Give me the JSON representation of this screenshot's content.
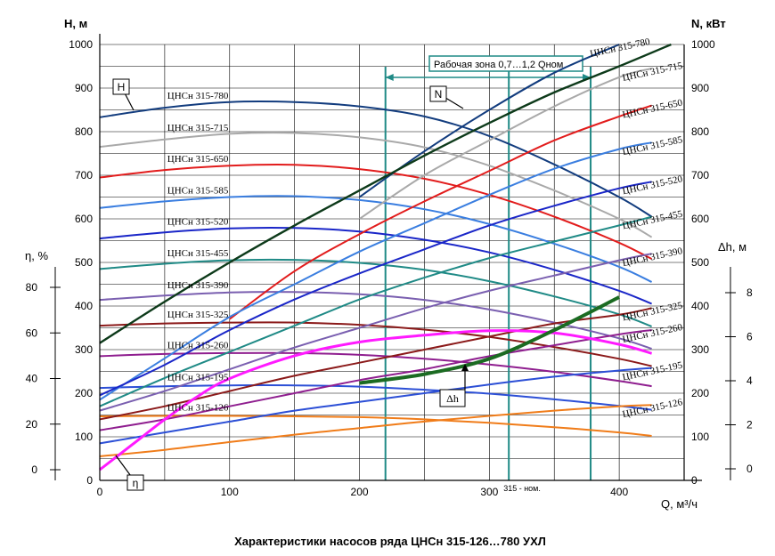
{
  "chart_data": {
    "type": "line",
    "title": "Характеристики насосов ряда ЦНСн 315-126…780 УХЛ",
    "xlabel": "Q, м³/ч",
    "xlim": [
      0,
      450
    ],
    "x_ticks": [
      0,
      100,
      200,
      300,
      400
    ],
    "axes": {
      "H": {
        "label": "Н, м",
        "lim": [
          0,
          1000
        ],
        "ticks": [
          0,
          100,
          200,
          300,
          400,
          500,
          600,
          700,
          800,
          900,
          1000
        ]
      },
      "N": {
        "label": "N, кВт",
        "lim": [
          0,
          1000
        ],
        "ticks": [
          0,
          100,
          200,
          300,
          400,
          500,
          600,
          700,
          800,
          900,
          1000
        ]
      },
      "eta": {
        "label": "η, %",
        "lim": [
          -5,
          90
        ],
        "ticks": [
          0,
          20,
          40,
          60,
          80
        ]
      },
      "dh": {
        "label": "Δh, м",
        "lim": [
          -1,
          10
        ],
        "ticks": [
          0,
          2,
          4,
          6,
          8
        ]
      }
    },
    "grid": true,
    "working_zone": {
      "label": "Рабочая зона 0,7…1,2 Qном",
      "q_min": 220,
      "q_max": 378,
      "q_nom": 315,
      "q_nom_label": "315 - ном."
    },
    "markers": {
      "H": "H",
      "N": "N",
      "eta": "η",
      "dh": "Δh"
    },
    "series": [
      {
        "name": "ЦНСн 315-780",
        "color": "#123c7e",
        "H": [
          [
            0,
            833
          ],
          [
            50,
            855
          ],
          [
            100,
            868
          ],
          [
            150,
            868
          ],
          [
            200,
            858
          ],
          [
            250,
            835
          ],
          [
            300,
            790
          ],
          [
            350,
            725
          ],
          [
            400,
            650
          ],
          [
            425,
            605
          ]
        ],
        "N": [
          [
            200,
            650
          ],
          [
            250,
            755
          ],
          [
            300,
            850
          ],
          [
            350,
            935
          ],
          [
            400,
            1000
          ]
        ]
      },
      {
        "name": "ЦНСн 315-715",
        "color": "#a9a9a9",
        "H": [
          [
            0,
            765
          ],
          [
            50,
            782
          ],
          [
            100,
            795
          ],
          [
            150,
            797
          ],
          [
            200,
            787
          ],
          [
            250,
            764
          ],
          [
            300,
            722
          ],
          [
            350,
            665
          ],
          [
            400,
            600
          ],
          [
            425,
            558
          ]
        ],
        "N": [
          [
            200,
            600
          ],
          [
            250,
            700
          ],
          [
            300,
            780
          ],
          [
            350,
            858
          ],
          [
            400,
            925
          ],
          [
            425,
            945
          ]
        ]
      },
      {
        "name": "ЦНСн 315-650",
        "color": "#e21c1c",
        "H": [
          [
            0,
            695
          ],
          [
            50,
            712
          ],
          [
            100,
            722
          ],
          [
            150,
            724
          ],
          [
            200,
            714
          ],
          [
            250,
            692
          ],
          [
            300,
            655
          ],
          [
            350,
            605
          ],
          [
            400,
            545
          ],
          [
            425,
            508
          ]
        ],
        "N": [
          [
            100,
            370
          ],
          [
            150,
            480
          ],
          [
            200,
            565
          ],
          [
            250,
            640
          ],
          [
            300,
            710
          ],
          [
            350,
            780
          ],
          [
            400,
            835
          ],
          [
            425,
            860
          ]
        ]
      },
      {
        "name": "ЦНСн 315-585",
        "color": "#3a7ee0",
        "H": [
          [
            0,
            625
          ],
          [
            50,
            640
          ],
          [
            100,
            650
          ],
          [
            150,
            652
          ],
          [
            200,
            643
          ],
          [
            250,
            622
          ],
          [
            300,
            588
          ],
          [
            350,
            543
          ],
          [
            400,
            490
          ],
          [
            425,
            455
          ]
        ],
        "N": [
          [
            0,
            185
          ],
          [
            50,
            280
          ],
          [
            100,
            375
          ],
          [
            150,
            450
          ],
          [
            200,
            525
          ],
          [
            250,
            590
          ],
          [
            300,
            655
          ],
          [
            350,
            715
          ],
          [
            400,
            760
          ],
          [
            425,
            775
          ]
        ]
      },
      {
        "name": "ЦНСн 315-520",
        "color": "#1a26c8",
        "H": [
          [
            0,
            555
          ],
          [
            50,
            569
          ],
          [
            100,
            578
          ],
          [
            150,
            579
          ],
          [
            200,
            571
          ],
          [
            250,
            552
          ],
          [
            300,
            523
          ],
          [
            350,
            483
          ],
          [
            400,
            435
          ],
          [
            425,
            405
          ]
        ],
        "N": [
          [
            0,
            195
          ],
          [
            50,
            265
          ],
          [
            100,
            345
          ],
          [
            150,
            415
          ],
          [
            200,
            475
          ],
          [
            250,
            530
          ],
          [
            300,
            585
          ],
          [
            350,
            630
          ],
          [
            400,
            670
          ],
          [
            425,
            685
          ]
        ]
      },
      {
        "name": "ЦНСн 315-455",
        "color": "#1f8a86",
        "H": [
          [
            0,
            485
          ],
          [
            50,
            497
          ],
          [
            100,
            505
          ],
          [
            150,
            506
          ],
          [
            200,
            499
          ],
          [
            250,
            483
          ],
          [
            300,
            457
          ],
          [
            350,
            422
          ],
          [
            400,
            381
          ],
          [
            425,
            353
          ]
        ],
        "N": [
          [
            0,
            170
          ],
          [
            50,
            235
          ],
          [
            100,
            295
          ],
          [
            150,
            355
          ],
          [
            200,
            415
          ],
          [
            250,
            465
          ],
          [
            300,
            510
          ],
          [
            350,
            548
          ],
          [
            400,
            585
          ],
          [
            425,
            605
          ]
        ]
      },
      {
        "name": "ЦНСн 315-390",
        "color": "#7a5fb0",
        "H": [
          [
            0,
            414
          ],
          [
            50,
            424
          ],
          [
            100,
            431
          ],
          [
            150,
            432
          ],
          [
            200,
            427
          ],
          [
            250,
            414
          ],
          [
            300,
            392
          ],
          [
            350,
            362
          ],
          [
            400,
            326
          ],
          [
            425,
            302
          ]
        ],
        "N": [
          [
            0,
            160
          ],
          [
            50,
            205
          ],
          [
            100,
            255
          ],
          [
            150,
            305
          ],
          [
            200,
            350
          ],
          [
            250,
            395
          ],
          [
            300,
            435
          ],
          [
            350,
            470
          ],
          [
            400,
            505
          ],
          [
            425,
            520
          ]
        ]
      },
      {
        "name": "ЦНСн 315-325",
        "color": "#8b1a1a",
        "H": [
          [
            0,
            355
          ],
          [
            50,
            360
          ],
          [
            100,
            362
          ],
          [
            150,
            362
          ],
          [
            200,
            357
          ],
          [
            250,
            346
          ],
          [
            300,
            329
          ],
          [
            350,
            306
          ],
          [
            400,
            279
          ],
          [
            425,
            262
          ]
        ],
        "N": [
          [
            0,
            140
          ],
          [
            50,
            170
          ],
          [
            100,
            205
          ],
          [
            150,
            240
          ],
          [
            200,
            270
          ],
          [
            250,
            300
          ],
          [
            300,
            330
          ],
          [
            350,
            360
          ],
          [
            400,
            380
          ],
          [
            425,
            395
          ]
        ]
      },
      {
        "name": "ЦНСн 315-260",
        "color": "#8f1e8f",
        "H": [
          [
            0,
            285
          ],
          [
            50,
            290
          ],
          [
            100,
            292
          ],
          [
            150,
            292
          ],
          [
            200,
            288
          ],
          [
            250,
            279
          ],
          [
            300,
            266
          ],
          [
            350,
            249
          ],
          [
            400,
            228
          ],
          [
            425,
            216
          ]
        ],
        "N": [
          [
            0,
            115
          ],
          [
            50,
            140
          ],
          [
            100,
            170
          ],
          [
            150,
            200
          ],
          [
            200,
            230
          ],
          [
            250,
            255
          ],
          [
            300,
            285
          ],
          [
            350,
            310
          ],
          [
            400,
            335
          ],
          [
            425,
            345
          ]
        ]
      },
      {
        "name": "ЦНСн 315-195",
        "color": "#2c4fd6",
        "H": [
          [
            0,
            212
          ],
          [
            50,
            216
          ],
          [
            100,
            218
          ],
          [
            150,
            218
          ],
          [
            200,
            215
          ],
          [
            250,
            208
          ],
          [
            300,
            199
          ],
          [
            350,
            186
          ],
          [
            400,
            171
          ],
          [
            425,
            162
          ]
        ],
        "N": [
          [
            0,
            85
          ],
          [
            50,
            110
          ],
          [
            100,
            135
          ],
          [
            150,
            160
          ],
          [
            200,
            180
          ],
          [
            250,
            200
          ],
          [
            300,
            220
          ],
          [
            350,
            238
          ],
          [
            400,
            252
          ],
          [
            425,
            258
          ]
        ]
      },
      {
        "name": "ЦНСн 315-126",
        "color": "#f07c19",
        "H": [
          [
            0,
            147
          ],
          [
            50,
            148
          ],
          [
            100,
            148
          ],
          [
            150,
            147
          ],
          [
            200,
            145
          ],
          [
            250,
            140
          ],
          [
            300,
            132
          ],
          [
            350,
            122
          ],
          [
            400,
            110
          ],
          [
            425,
            102
          ]
        ],
        "N": [
          [
            0,
            55
          ],
          [
            50,
            70
          ],
          [
            100,
            88
          ],
          [
            150,
            105
          ],
          [
            200,
            120
          ],
          [
            250,
            135
          ],
          [
            300,
            148
          ],
          [
            350,
            160
          ],
          [
            400,
            170
          ],
          [
            425,
            173
          ]
        ]
      }
    ],
    "N_envelope": {
      "name": "N",
      "color": "#0d3a1a",
      "points": [
        [
          0,
          315
        ],
        [
          50,
          410
        ],
        [
          100,
          500
        ],
        [
          150,
          585
        ],
        [
          200,
          665
        ],
        [
          250,
          745
        ],
        [
          300,
          820
        ],
        [
          350,
          890
        ],
        [
          400,
          950
        ],
        [
          440,
          1000
        ]
      ]
    },
    "efficiency": {
      "name": "η",
      "color": "#ff1aff",
      "points": [
        [
          0,
          0
        ],
        [
          25,
          11
        ],
        [
          50,
          22
        ],
        [
          75,
          32
        ],
        [
          100,
          40
        ],
        [
          150,
          50
        ],
        [
          200,
          56
        ],
        [
          250,
          59
        ],
        [
          300,
          61
        ],
        [
          350,
          60
        ],
        [
          400,
          55
        ],
        [
          425,
          51
        ]
      ]
    },
    "npsh": {
      "name": "Δh",
      "color": "#1b6b22",
      "points": [
        [
          200,
          3.9
        ],
        [
          250,
          4.3
        ],
        [
          300,
          5.0
        ],
        [
          350,
          6.3
        ],
        [
          400,
          7.8
        ]
      ]
    }
  }
}
